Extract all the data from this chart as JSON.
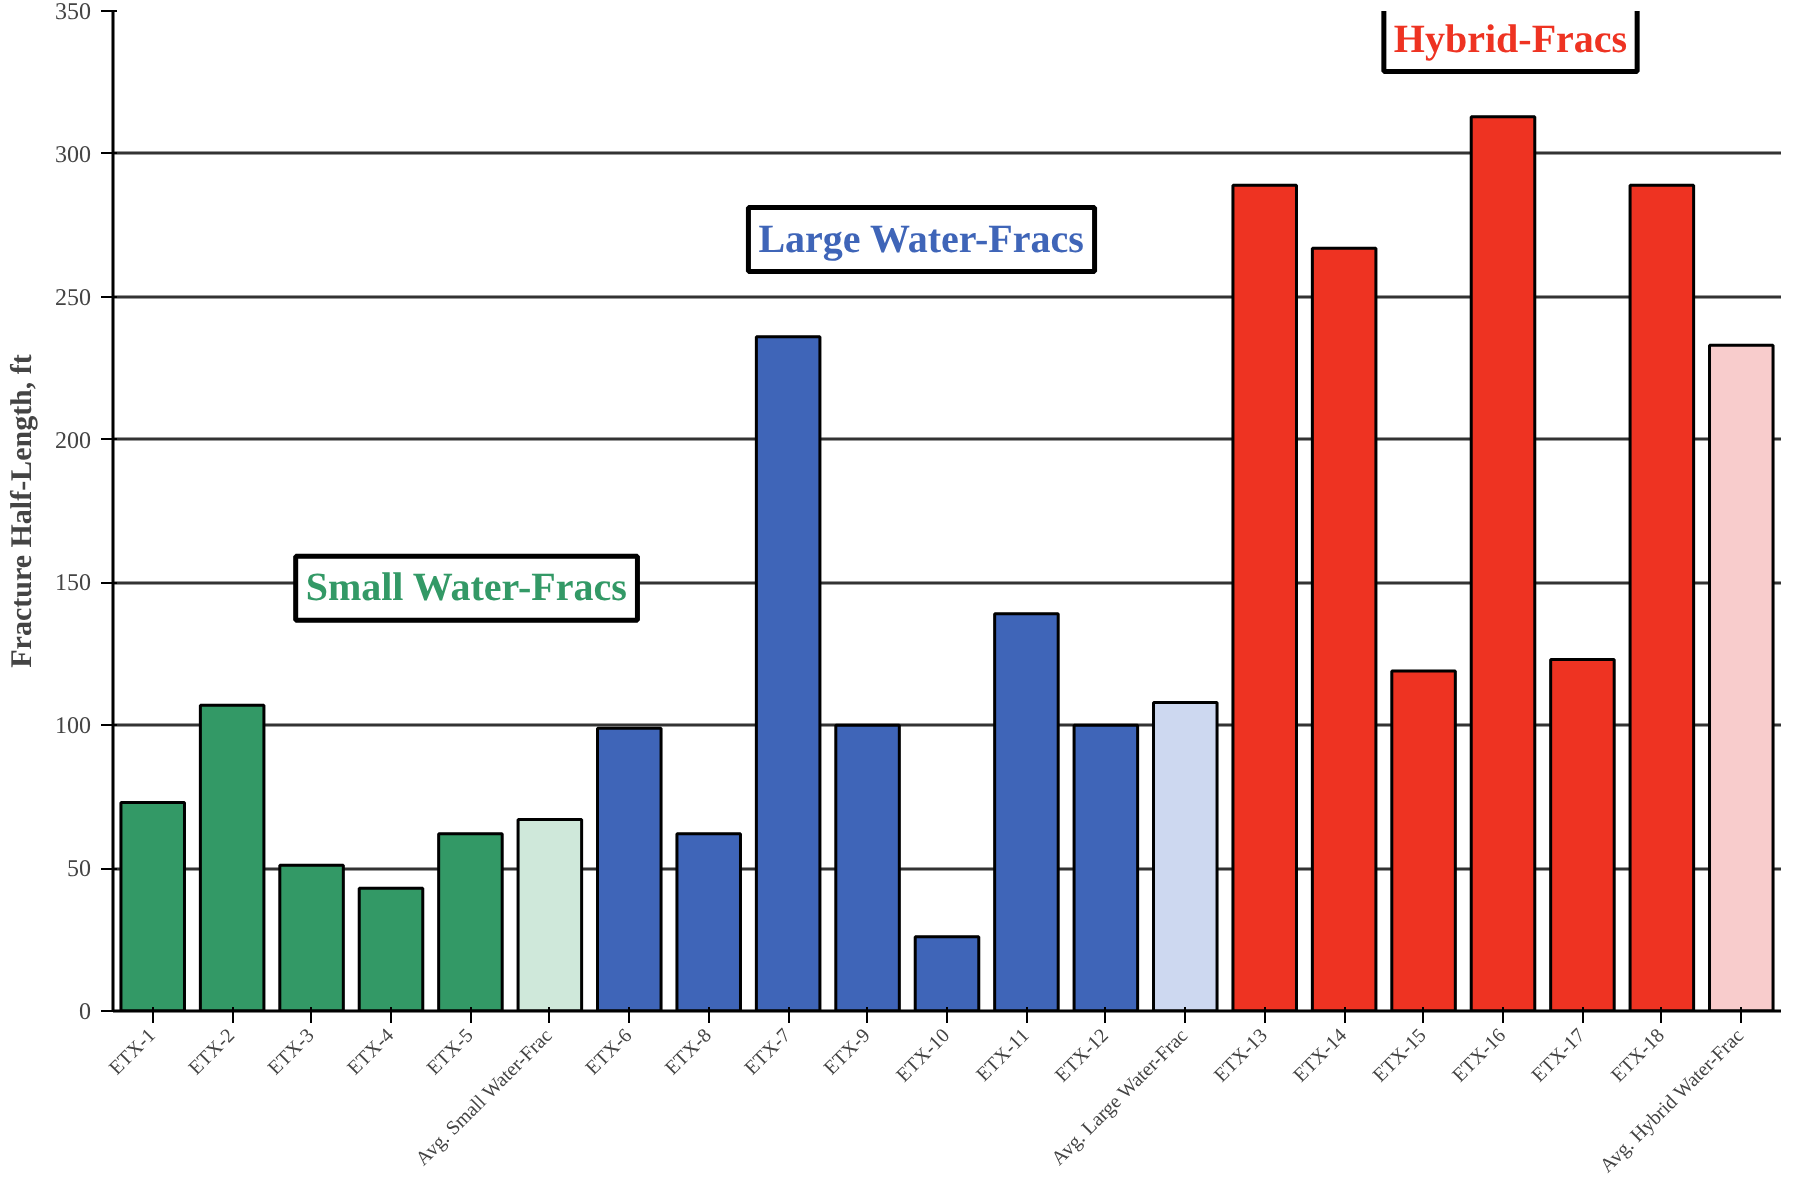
{
  "chart_data": {
    "type": "bar",
    "ylabel": "Fracture Half-Length, ft",
    "categories": [
      "ETX-1",
      "ETX-2",
      "ETX-3",
      "ETX-4",
      "ETX-5",
      "Avg. Small Water-Frac",
      "ETX-6",
      "ETX-8",
      "ETX-7",
      "ETX-9",
      "ETX-10",
      "ETX-11",
      "ETX-12",
      "Avg. Large Water-Frac",
      "ETX-13",
      "ETX-14",
      "ETX-15",
      "ETX-16",
      "ETX-17",
      "ETX-18",
      "Avg. Hybrid Water-Frac"
    ],
    "values": [
      73,
      107,
      51,
      43,
      62,
      67,
      99,
      62,
      236,
      100,
      26,
      139,
      100,
      108,
      289,
      267,
      119,
      313,
      123,
      289,
      233
    ],
    "colors": [
      "#339966",
      "#339966",
      "#339966",
      "#339966",
      "#339966",
      "#cfe8da",
      "#3f65b8",
      "#3f65b8",
      "#3f65b8",
      "#3f65b8",
      "#3f65b8",
      "#3f65b8",
      "#3f65b8",
      "#cdd8f0",
      "#ee3322",
      "#ee3322",
      "#ee3322",
      "#ee3322",
      "#ee3322",
      "#ee3322",
      "#f8cccc"
    ],
    "annotations": [
      "Small Water-Fracs",
      "Large Water-Fracs",
      "Hybrid-Fracs"
    ],
    "ylim": [
      0,
      350
    ],
    "yticks": [
      0,
      50,
      100,
      150,
      200,
      250,
      300,
      350
    ],
    "grid": "y"
  }
}
